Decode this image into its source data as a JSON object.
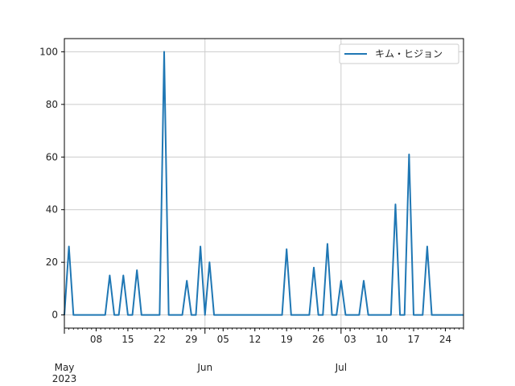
{
  "chart_data": {
    "type": "line",
    "title": "",
    "xlabel": "",
    "ylabel": "",
    "x_start": "2023-05-01",
    "x_end": "2023-07-28",
    "xlim": [
      "2023-05-01",
      "2023-07-28"
    ],
    "ylim": [
      -5,
      105
    ],
    "grid": true,
    "legend_position": "top-right",
    "y_ticks": [
      "0",
      "20",
      "40",
      "60",
      "80",
      "100"
    ],
    "x_minor_ticks": [
      {
        "date": "2023-05-08",
        "label": "08"
      },
      {
        "date": "2023-05-15",
        "label": "15"
      },
      {
        "date": "2023-05-22",
        "label": "22"
      },
      {
        "date": "2023-05-29",
        "label": "29"
      },
      {
        "date": "2023-06-05",
        "label": "05"
      },
      {
        "date": "2023-06-12",
        "label": "12"
      },
      {
        "date": "2023-06-19",
        "label": "19"
      },
      {
        "date": "2023-06-26",
        "label": "26"
      },
      {
        "date": "2023-07-03",
        "label": "03"
      },
      {
        "date": "2023-07-10",
        "label": "10"
      },
      {
        "date": "2023-07-17",
        "label": "17"
      },
      {
        "date": "2023-07-24",
        "label": "24"
      }
    ],
    "x_major_ticks": [
      {
        "date": "2023-05-01",
        "label": "May",
        "sublabel": "2023"
      },
      {
        "date": "2023-06-01",
        "label": "Jun",
        "sublabel": ""
      },
      {
        "date": "2023-07-01",
        "label": "Jul",
        "sublabel": ""
      }
    ],
    "series": [
      {
        "name": "キム・ヒジョン",
        "color": "#1f77b4",
        "points": [
          {
            "x": "2023-05-02",
            "y": 26
          },
          {
            "x": "2023-05-11",
            "y": 15
          },
          {
            "x": "2023-05-14",
            "y": 15
          },
          {
            "x": "2023-05-17",
            "y": 17
          },
          {
            "x": "2023-05-23",
            "y": 100
          },
          {
            "x": "2023-05-28",
            "y": 13
          },
          {
            "x": "2023-05-31",
            "y": 26
          },
          {
            "x": "2023-06-02",
            "y": 20
          },
          {
            "x": "2023-06-19",
            "y": 25
          },
          {
            "x": "2023-06-25",
            "y": 18
          },
          {
            "x": "2023-06-28",
            "y": 27
          },
          {
            "x": "2023-07-01",
            "y": 13
          },
          {
            "x": "2023-07-06",
            "y": 13
          },
          {
            "x": "2023-07-13",
            "y": 42
          },
          {
            "x": "2023-07-16",
            "y": 61
          },
          {
            "x": "2023-07-20",
            "y": 26
          }
        ]
      }
    ]
  }
}
